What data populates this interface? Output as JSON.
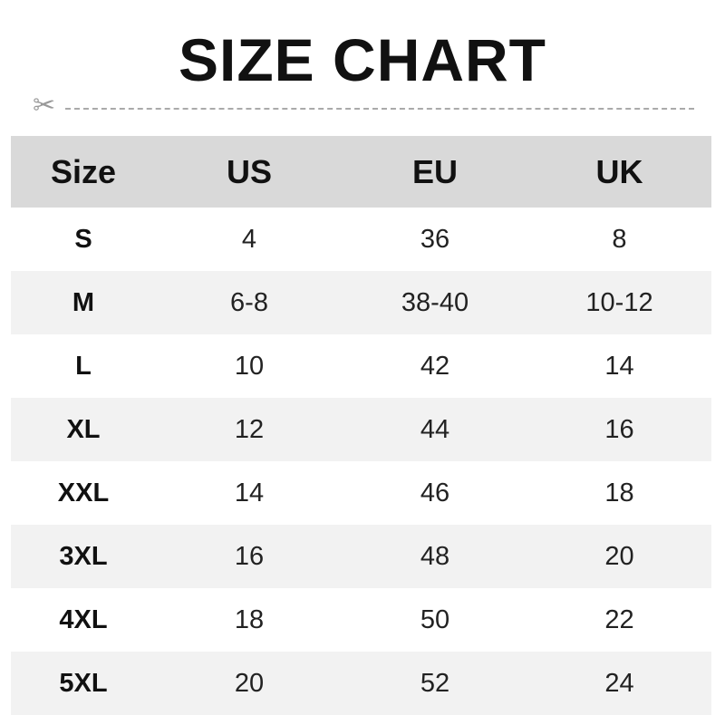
{
  "title": "SIZE CHART",
  "colors": {
    "header_bg": "#d9d9d9",
    "alt_row_bg": "#f2f2f2",
    "scissors": "#999999"
  },
  "icons": {
    "cut_line": "scissors-icon"
  },
  "headers": [
    "Size",
    "US",
    "EU",
    "UK"
  ],
  "rows": [
    [
      "S",
      "4",
      "36",
      "8"
    ],
    [
      "M",
      "6-8",
      "38-40",
      "10-12"
    ],
    [
      "L",
      "10",
      "42",
      "14"
    ],
    [
      "XL",
      "12",
      "44",
      "16"
    ],
    [
      "XXL",
      "14",
      "46",
      "18"
    ],
    [
      "3XL",
      "16",
      "48",
      "20"
    ],
    [
      "4XL",
      "18",
      "50",
      "22"
    ],
    [
      "5XL",
      "20",
      "52",
      "24"
    ]
  ]
}
